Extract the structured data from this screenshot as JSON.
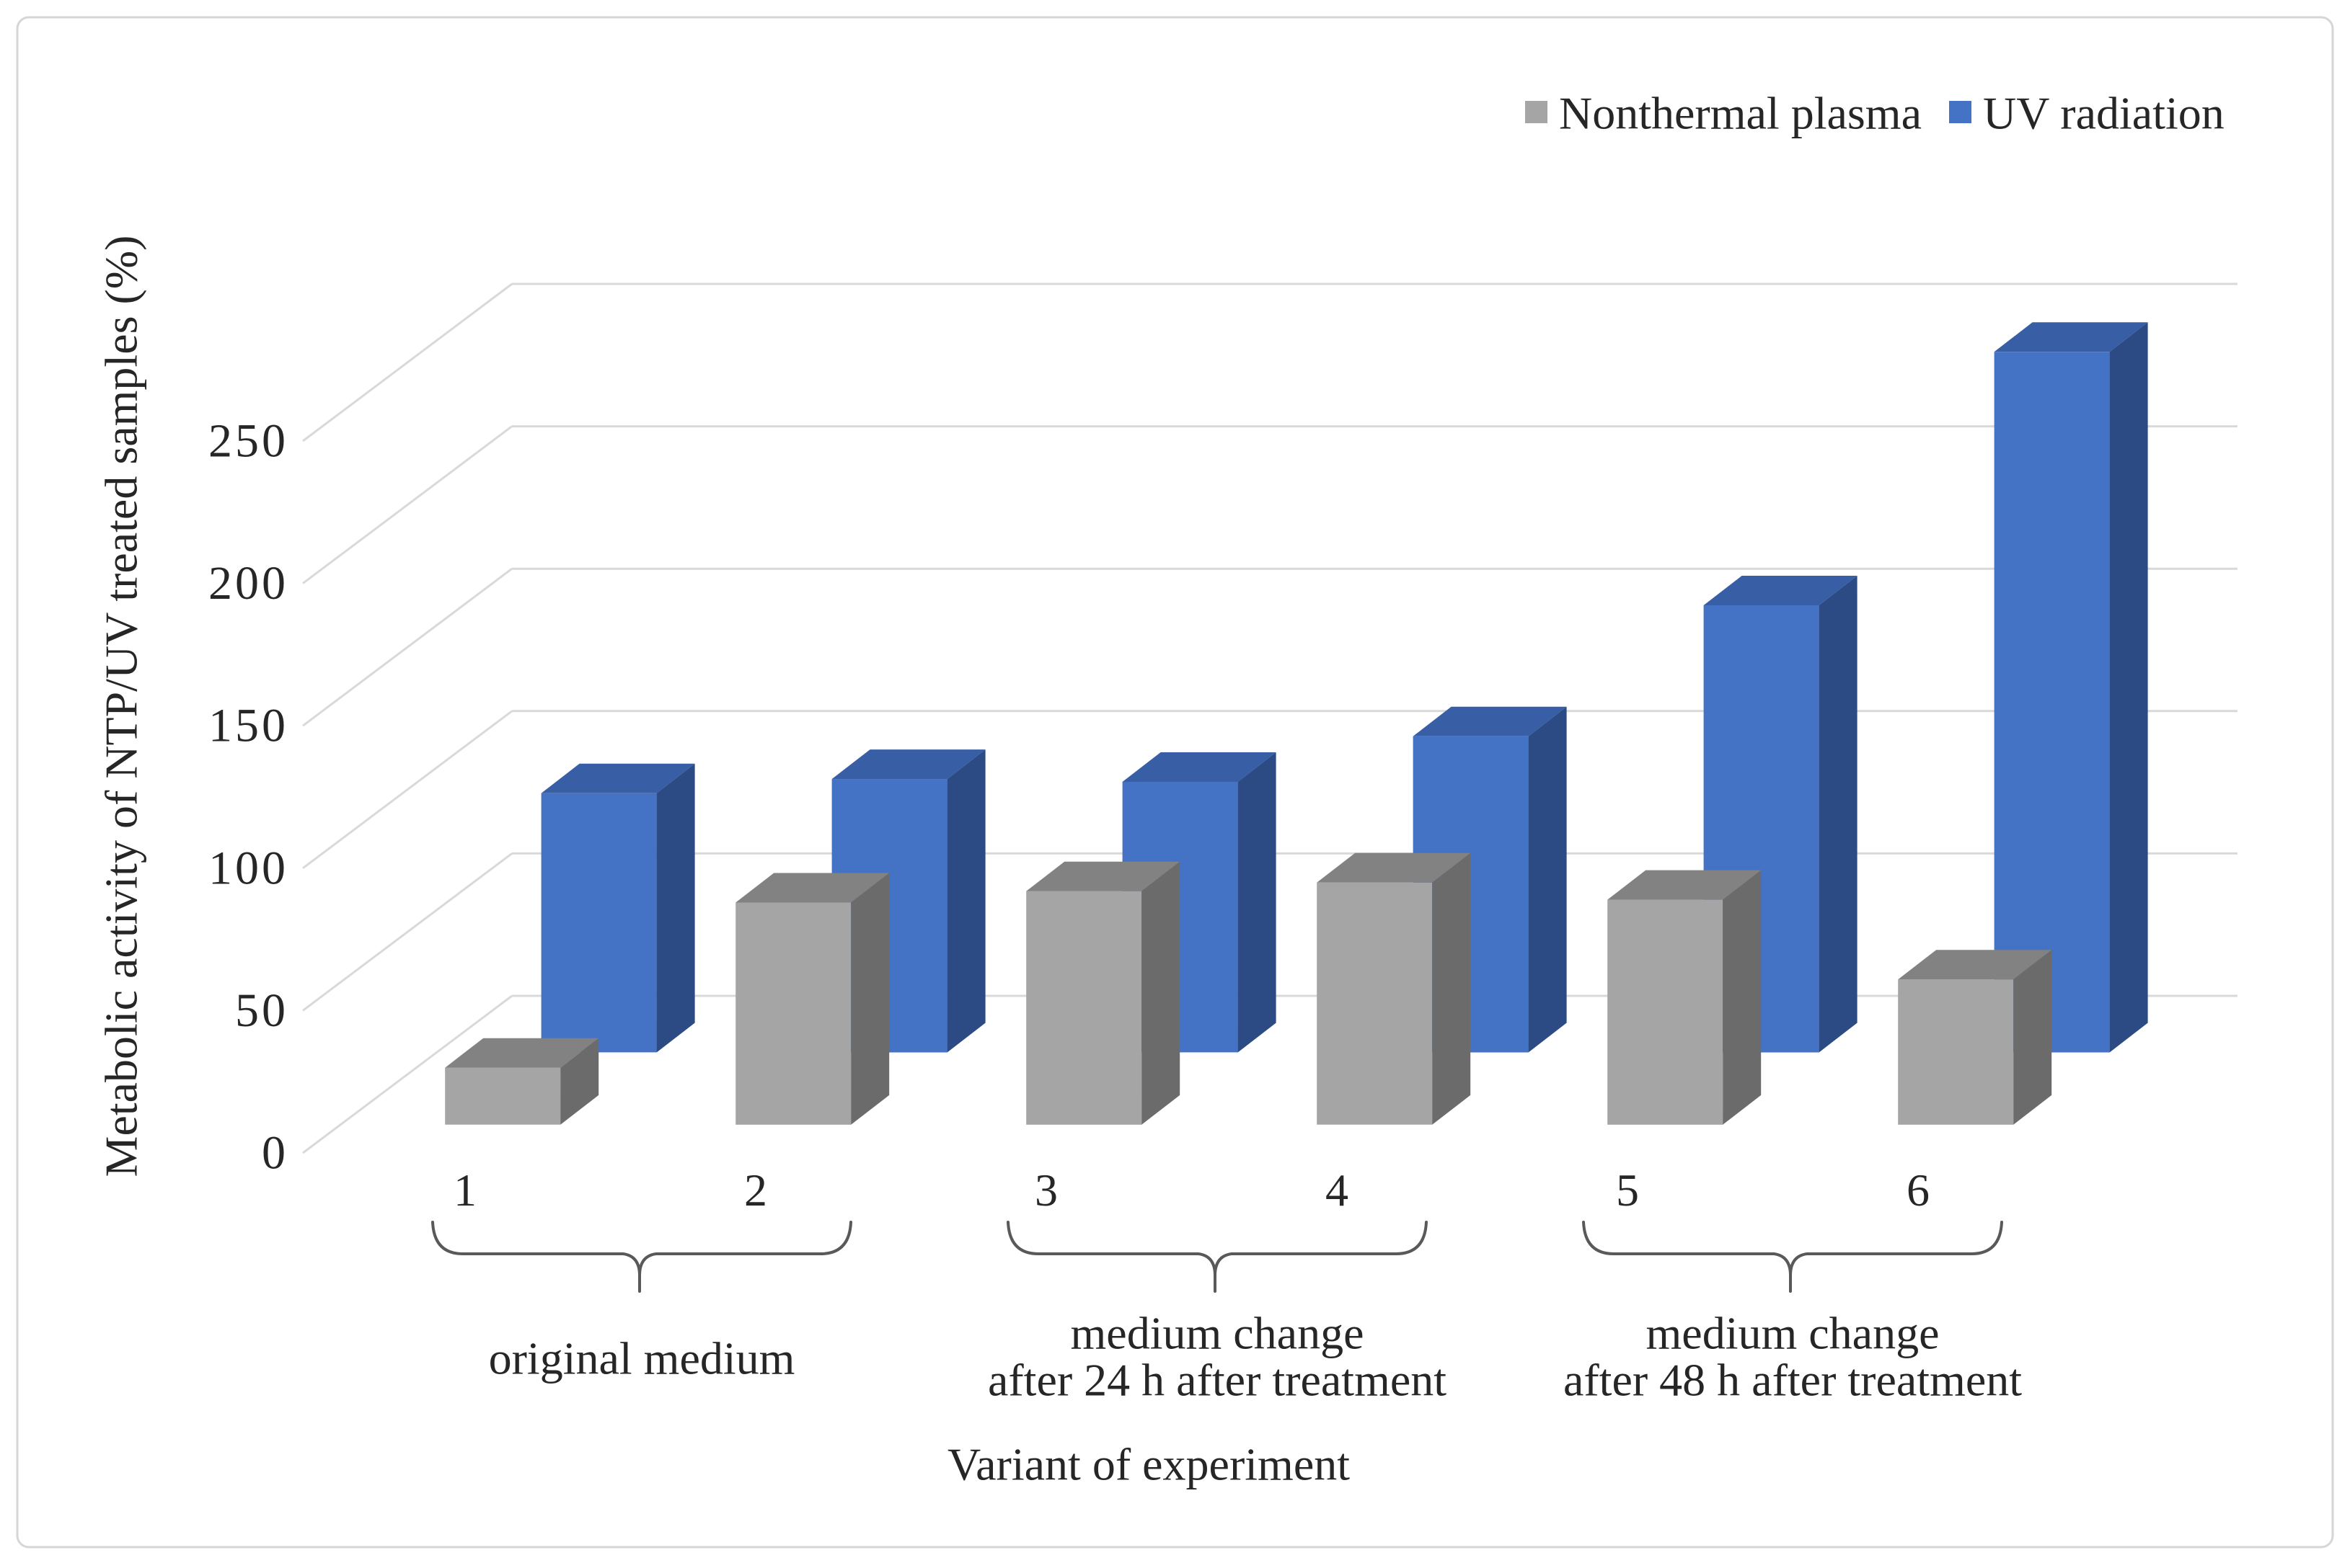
{
  "figure": {
    "background": "#ffffff",
    "border_color": "#d6d6d6",
    "gridline_color": "#d9d9d9",
    "text_color": "#262626",
    "brace_color": "#595959"
  },
  "legend": {
    "position": "top-right",
    "items": [
      {
        "id": "ntp",
        "label": "Nonthermal plasma",
        "color": "#a5a5a5"
      },
      {
        "id": "uv",
        "label": "UV radiation",
        "color": "#4472c4"
      }
    ]
  },
  "chart_data": {
    "type": "bar",
    "projection": "3d-oblique",
    "title": "",
    "xlabel": "Variant of experiment",
    "ylabel": "Metabolic activity of NTP/UV treated samples (%)",
    "categories": [
      "1",
      "2",
      "3",
      "4",
      "5",
      "6"
    ],
    "series": [
      {
        "name": "Nonthermal plasma",
        "color": "#a5a5a5",
        "top_color": "#828282",
        "side_color": "#6b6b6b",
        "values": [
          20,
          78,
          82,
          85,
          79,
          51
        ]
      },
      {
        "name": "UV radiation",
        "color": "#4472c4",
        "top_color": "#385ea6",
        "side_color": "#2c4a84",
        "values": [
          91,
          96,
          95,
          111,
          157,
          246
        ]
      }
    ],
    "y_ticks": [
      0,
      50,
      100,
      150,
      200,
      250
    ],
    "ylim": [
      0,
      250
    ],
    "grid": true,
    "legend_position": "top-right",
    "groups": [
      {
        "label_lines": [
          "original medium"
        ],
        "categories": [
          "1",
          "2"
        ]
      },
      {
        "label_lines": [
          "medium change",
          "after 24 h after treatment"
        ],
        "categories": [
          "3",
          "4"
        ]
      },
      {
        "label_lines": [
          "medium change",
          "after 48 h after treatment"
        ],
        "categories": [
          "5",
          "6"
        ]
      }
    ]
  }
}
